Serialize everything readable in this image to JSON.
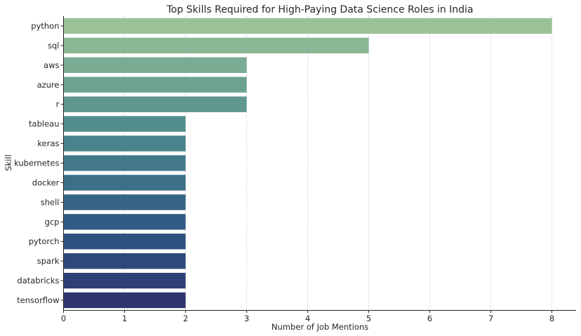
{
  "chart_data": {
    "type": "bar",
    "orientation": "horizontal",
    "title": "Top Skills Required for High-Paying Data Science Roles in India",
    "xlabel": "Number of Job Mentions",
    "ylabel": "Skill",
    "categories": [
      "python",
      "sql",
      "aws",
      "azure",
      "r",
      "tableau",
      "keras",
      "kubernetes",
      "docker",
      "shell",
      "gcp",
      "pytorch",
      "spark",
      "databricks",
      "tensorflow"
    ],
    "values": [
      8,
      5,
      3,
      3,
      3,
      2,
      2,
      2,
      2,
      2,
      2,
      2,
      2,
      2,
      2
    ],
    "xlim": [
      0,
      8.4
    ],
    "xticks": [
      "0",
      "1",
      "2",
      "3",
      "4",
      "5",
      "6",
      "7",
      "8"
    ],
    "grid": "vertical dashed",
    "colors": [
      "#9bc297",
      "#8ab795",
      "#7aac93",
      "#6ca291",
      "#5f978f",
      "#548d8d",
      "#4b838c",
      "#43798a",
      "#3c6f88",
      "#366586",
      "#315b83",
      "#2e5280",
      "#2d497c",
      "#2e3f75",
      "#2f366d"
    ]
  }
}
